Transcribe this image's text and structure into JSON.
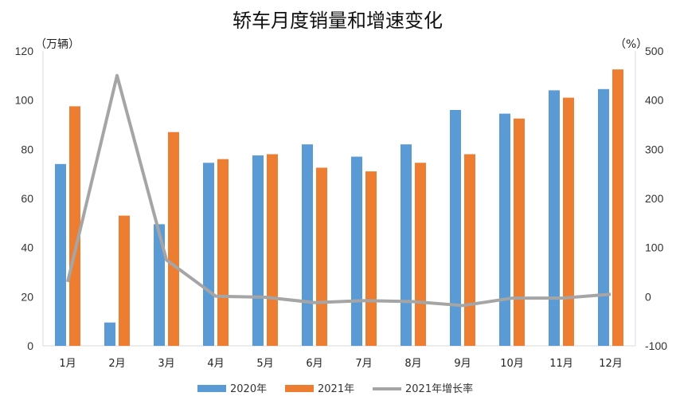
{
  "chart_data": {
    "type": "bar",
    "title": "轿车月度销量和增速变化",
    "ylabel_left": "（万辆）",
    "ylabel_right": "（%）",
    "categories": [
      "1月",
      "2月",
      "3月",
      "4月",
      "5月",
      "6月",
      "7月",
      "8月",
      "9月",
      "10月",
      "11月",
      "12月"
    ],
    "series": [
      {
        "name": "2020年",
        "kind": "bar",
        "axis": "left",
        "color": "#5B9BD5",
        "values": [
          74,
          9.5,
          49.5,
          74.5,
          77.5,
          82,
          77,
          82,
          96,
          94.5,
          104,
          104.5
        ]
      },
      {
        "name": "2021年",
        "kind": "bar",
        "axis": "left",
        "color": "#ED7D31",
        "values": [
          97.5,
          53,
          87,
          76,
          78,
          72.5,
          71,
          74.5,
          78,
          92.5,
          101,
          112.5
        ]
      },
      {
        "name": "2021年增长率",
        "kind": "line",
        "axis": "right",
        "color": "#A5A5A5",
        "values": [
          30,
          450,
          75,
          1,
          -1,
          -12,
          -8,
          -10,
          -18,
          -3,
          -3,
          5
        ]
      }
    ],
    "ylim_left": [
      0,
      120
    ],
    "yticks_left": [
      "0",
      "20",
      "40",
      "60",
      "80",
      "100",
      "120"
    ],
    "ylim_right": [
      -100,
      500
    ],
    "yticks_right": [
      "-100",
      "0",
      "100",
      "200",
      "300",
      "400",
      "500"
    ],
    "negative_tick_color": "#E00000",
    "grid": false,
    "legend_position": "bottom"
  }
}
